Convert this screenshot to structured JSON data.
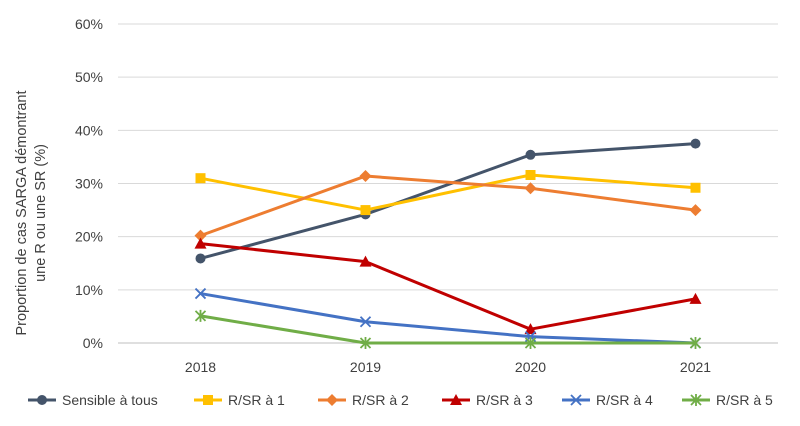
{
  "chart_data": {
    "type": "line",
    "title": "",
    "xlabel": "",
    "ylabel_lines": [
      "Proportion de cas SARGA démontrant",
      "une R ou une SR (%)"
    ],
    "categories": [
      "2018",
      "2019",
      "2020",
      "2021"
    ],
    "ylim": [
      0,
      60
    ],
    "yticks": [
      0,
      10,
      20,
      30,
      40,
      50,
      60
    ],
    "ytick_labels": [
      "0%",
      "10%",
      "20%",
      "30%",
      "40%",
      "50%",
      "60%"
    ],
    "grid": "horizontal",
    "legend": "bottom",
    "series": [
      {
        "name": "Sensible à tous",
        "color": "#44546A",
        "marker": "circle",
        "values": [
          15.9,
          24.2,
          35.4,
          37.5
        ]
      },
      {
        "name": "R/SR à 1",
        "color": "#FFC000",
        "marker": "square",
        "values": [
          31.0,
          25.0,
          31.6,
          29.2
        ]
      },
      {
        "name": "R/SR à 2",
        "color": "#ED7D31",
        "marker": "diamond",
        "values": [
          20.2,
          31.4,
          29.1,
          25.0
        ]
      },
      {
        "name": "R/SR à 3",
        "color": "#C00000",
        "marker": "triangle",
        "values": [
          18.7,
          15.3,
          2.6,
          8.3
        ]
      },
      {
        "name": "R/SR à 4",
        "color": "#4472C4",
        "marker": "x",
        "values": [
          9.3,
          4.0,
          1.2,
          0.0
        ]
      },
      {
        "name": "R/SR à 5",
        "color": "#70AD47",
        "marker": "star",
        "values": [
          5.1,
          0.0,
          0.0,
          0.0
        ]
      }
    ]
  }
}
